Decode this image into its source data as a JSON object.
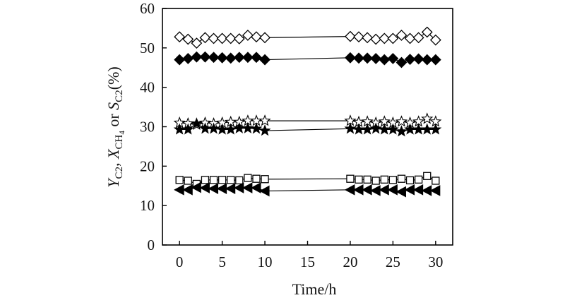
{
  "chart_data": {
    "type": "scatter",
    "title": "",
    "xlabel": "Time/h",
    "ylabel": "Y_C2, X_CH4 or S_C2(%)",
    "ylabel_parts": {
      "y": "Y",
      "y_sub": "C2",
      "sep1": ", ",
      "x": "X",
      "x_sub": "CH",
      "x_sub2": "4",
      "sep2": " or ",
      "s": "S",
      "s_sub": "C2",
      "unit": "(%)"
    },
    "xlim": [
      -2,
      32
    ],
    "ylim": [
      0,
      60
    ],
    "xticks": [
      0,
      5,
      10,
      15,
      20,
      25,
      30
    ],
    "yticks": [
      0,
      10,
      20,
      30,
      40,
      50,
      60
    ],
    "grid": false,
    "series": [
      {
        "marker": "diamond-open",
        "x": [
          0,
          1,
          2,
          3,
          4,
          5,
          6,
          7,
          8,
          9,
          10,
          20,
          21,
          22,
          23,
          24,
          25,
          26,
          27,
          28,
          29,
          30
        ],
        "y": [
          52.8,
          52.2,
          51.2,
          52.6,
          52.4,
          52.4,
          52.4,
          52.3,
          53.2,
          52.8,
          52.6,
          52.9,
          52.8,
          52.6,
          52.2,
          52.4,
          52.4,
          53.2,
          52.4,
          52.6,
          54.0,
          52.0
        ]
      },
      {
        "marker": "diamond-filled",
        "x": [
          0,
          1,
          2,
          3,
          4,
          5,
          6,
          7,
          8,
          9,
          10,
          20,
          21,
          22,
          23,
          24,
          25,
          26,
          27,
          28,
          29,
          30
        ],
        "y": [
          47.0,
          47.3,
          47.7,
          47.7,
          47.6,
          47.5,
          47.4,
          47.6,
          47.6,
          47.6,
          47.0,
          47.5,
          47.4,
          47.4,
          47.3,
          47.0,
          47.3,
          46.3,
          47.1,
          47.2,
          47.0,
          47.0
        ]
      },
      {
        "marker": "star-open",
        "x": [
          0,
          1,
          2,
          3,
          4,
          5,
          6,
          7,
          8,
          9,
          10,
          20,
          21,
          22,
          23,
          24,
          25,
          26,
          27,
          28,
          29,
          30
        ],
        "y": [
          31.0,
          30.8,
          30.5,
          31.0,
          30.8,
          31.0,
          31.2,
          31.2,
          31.5,
          31.5,
          31.5,
          31.5,
          31.2,
          31.3,
          31.0,
          31.3,
          31.0,
          31.3,
          31.0,
          31.3,
          32.0,
          31.3
        ]
      },
      {
        "marker": "star-filled",
        "x": [
          0,
          1,
          2,
          3,
          4,
          5,
          6,
          7,
          8,
          9,
          10,
          20,
          21,
          22,
          23,
          24,
          25,
          26,
          27,
          28,
          29,
          30
        ],
        "y": [
          29.3,
          29.3,
          30.8,
          29.5,
          29.5,
          29.3,
          29.3,
          29.6,
          29.6,
          29.5,
          29.0,
          29.5,
          29.3,
          29.3,
          29.5,
          29.3,
          29.3,
          28.8,
          29.3,
          29.3,
          29.3,
          29.3
        ]
      },
      {
        "marker": "square-open",
        "x": [
          0,
          1,
          2,
          3,
          4,
          5,
          6,
          7,
          8,
          9,
          10,
          20,
          21,
          22,
          23,
          24,
          25,
          26,
          27,
          28,
          29,
          30
        ],
        "y": [
          16.5,
          16.3,
          15.5,
          16.5,
          16.5,
          16.5,
          16.5,
          16.4,
          17.0,
          16.8,
          16.7,
          16.8,
          16.6,
          16.6,
          16.3,
          16.6,
          16.5,
          16.8,
          16.4,
          16.6,
          17.5,
          16.3
        ]
      },
      {
        "marker": "triangle-left-filled",
        "x": [
          0,
          1,
          2,
          3,
          4,
          5,
          6,
          7,
          8,
          9,
          10,
          20,
          21,
          22,
          23,
          24,
          25,
          26,
          27,
          28,
          29,
          30
        ],
        "y": [
          14.0,
          14.0,
          14.6,
          14.5,
          14.3,
          14.3,
          14.3,
          14.5,
          14.5,
          14.5,
          13.7,
          14.0,
          14.0,
          14.0,
          13.8,
          14.0,
          14.0,
          13.5,
          14.0,
          14.0,
          13.8,
          13.8
        ]
      }
    ]
  }
}
